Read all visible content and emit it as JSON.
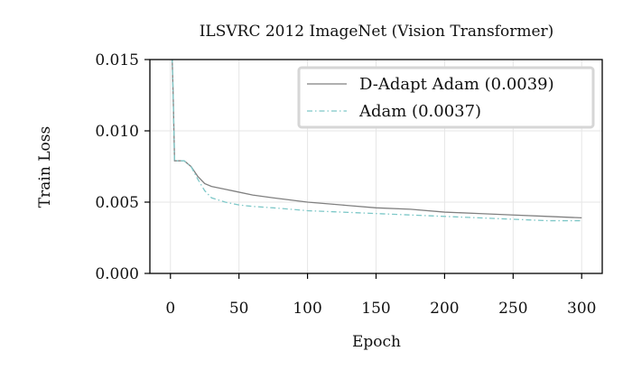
{
  "chart_data": {
    "type": "line",
    "title": "ILSVRC 2012 ImageNet (Vision Transformer)",
    "xlabel": "Epoch",
    "ylabel": "Train Loss",
    "xlim": [
      -15,
      315
    ],
    "ylim": [
      0,
      0.015
    ],
    "xticks": [
      0,
      50,
      100,
      150,
      200,
      250,
      300
    ],
    "xtick_labels": [
      "0",
      "50",
      "100",
      "150",
      "200",
      "250",
      "300"
    ],
    "yticks": [
      0,
      0.005,
      0.01,
      0.015
    ],
    "ytick_labels": [
      "0.000",
      "0.005",
      "0.010",
      "0.015"
    ],
    "grid": true,
    "legend_position": "top-right",
    "series": [
      {
        "name": "D-Adapt Adam (0.0039)",
        "color": "#808080",
        "dash": "solid",
        "x": [
          1,
          2,
          3,
          5,
          10,
          15,
          20,
          25,
          30,
          40,
          50,
          60,
          75,
          100,
          125,
          150,
          175,
          200,
          225,
          250,
          275,
          300
        ],
        "y": [
          0.016,
          0.0125,
          0.0079,
          0.0079,
          0.0079,
          0.0075,
          0.0068,
          0.0063,
          0.0061,
          0.0059,
          0.0057,
          0.0055,
          0.0053,
          0.005,
          0.0048,
          0.0046,
          0.0045,
          0.0043,
          0.0042,
          0.0041,
          0.004,
          0.0039
        ]
      },
      {
        "name": "Adam (0.0037)",
        "color": "#7ec8c8",
        "dash": "dashdot",
        "x": [
          1,
          2,
          3,
          5,
          10,
          15,
          20,
          25,
          30,
          40,
          50,
          60,
          75,
          100,
          125,
          150,
          175,
          200,
          225,
          250,
          275,
          300
        ],
        "y": [
          0.016,
          0.0125,
          0.0079,
          0.0079,
          0.0079,
          0.0075,
          0.0066,
          0.0058,
          0.0053,
          0.005,
          0.0048,
          0.0047,
          0.0046,
          0.0044,
          0.0043,
          0.0042,
          0.0041,
          0.004,
          0.0039,
          0.0038,
          0.0037,
          0.0037
        ]
      }
    ]
  }
}
